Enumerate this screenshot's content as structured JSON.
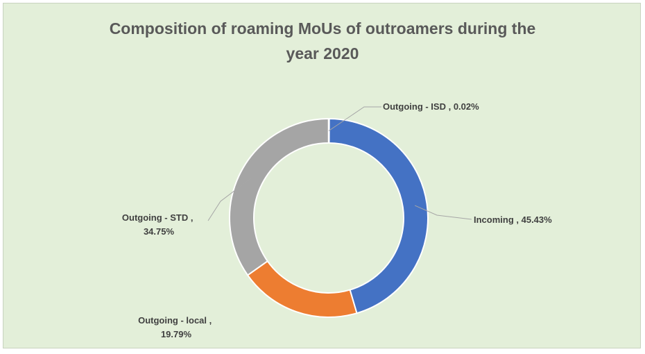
{
  "chart_data": {
    "type": "pie",
    "variant": "doughnut",
    "title_lines": [
      "Composition of roaming MoUs of outroamers during the",
      "year 2020"
    ],
    "title": "Composition of roaming MoUs of outroamers during the year 2020",
    "categories": [
      "Incoming",
      "Outgoing - local",
      "Outgoing - STD",
      "Outgoing - ISD"
    ],
    "values": [
      45.43,
      19.79,
      34.75,
      0.02
    ],
    "unit": "%",
    "colors": [
      "#4472c4",
      "#ed7d31",
      "#a5a5a5",
      "#ffc000"
    ],
    "labels": [
      {
        "series": "Incoming",
        "lines": [
          "Incoming , 45.43%"
        ]
      },
      {
        "series": "Outgoing - local",
        "lines": [
          "Outgoing - local ,",
          "19.79%"
        ]
      },
      {
        "series": "Outgoing - STD",
        "lines": [
          "Outgoing - STD ,",
          "34.75%"
        ]
      },
      {
        "series": "Outgoing - ISD",
        "lines": [
          "Outgoing - ISD , 0.02%"
        ]
      }
    ],
    "legend": "none",
    "background": "#e3efd9"
  }
}
